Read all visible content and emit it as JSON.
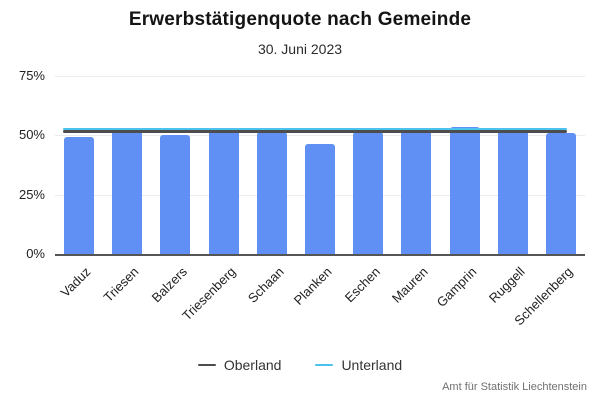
{
  "chart_data": {
    "type": "bar",
    "title": "Erwerbstätigenquote nach Gemeinde",
    "subtitle": "30. Juni 2023",
    "categories": [
      "Vaduz",
      "Triesen",
      "Balzers",
      "Triesenberg",
      "Schaan",
      "Planken",
      "Eschen",
      "Mauren",
      "Gamprin",
      "Ruggell",
      "Schellenberg"
    ],
    "values": [
      49.2,
      52.0,
      50.0,
      52.3,
      51.4,
      46.4,
      51.5,
      51.8,
      53.6,
      52.1,
      51.1
    ],
    "bar_color": "#6090f4",
    "reference_lines": [
      {
        "name": "Oberland",
        "value": 51.7,
        "color": "#4d4d4d"
      },
      {
        "name": "Unterland",
        "value": 52.7,
        "color": "#4cc3ee"
      }
    ],
    "xlabel": "",
    "ylabel": "",
    "ylim": [
      0,
      75
    ],
    "yticks": [
      {
        "value": 0,
        "label": "0%"
      },
      {
        "value": 25,
        "label": "25%"
      },
      {
        "value": 50,
        "label": "50%"
      },
      {
        "value": 75,
        "label": "75%"
      }
    ],
    "grid": true,
    "legend_position": "bottom"
  },
  "footer": {
    "source": "Amt für Statistik Liechtenstein"
  }
}
